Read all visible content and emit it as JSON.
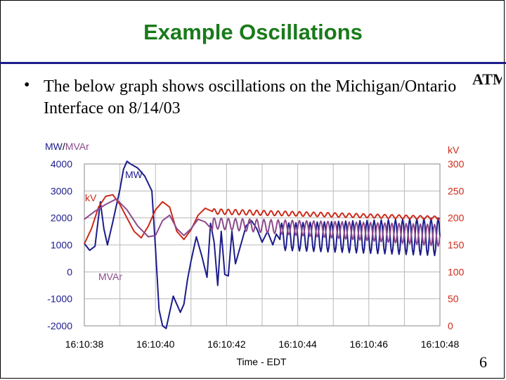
{
  "slide": {
    "title": "Example Oscillations",
    "bullet": "The below graph shows oscillations on the Michigan/Ontario Interface on 8/14/03",
    "page_number": "6",
    "logo_text": "ATM"
  },
  "chart_data": {
    "type": "line",
    "title": "",
    "xlabel": "Time - EDT",
    "ylabel_left_parts": [
      "MW",
      "/",
      "MVAr"
    ],
    "ylabel_right": "kV",
    "x_ticks": [
      "16:10:38",
      "16:10:40",
      "16:10:42",
      "16:10:44",
      "16:10:46",
      "16:10:48"
    ],
    "y_left_ticks": [
      "4000",
      "3000",
      "2000",
      "1000",
      "0",
      "-1000",
      "-2000"
    ],
    "y_right_ticks": [
      "300",
      "250",
      "200",
      "150",
      "100",
      "50",
      "0"
    ],
    "ylim_left": [
      -2000,
      4000
    ],
    "ylim_right": [
      0,
      300
    ],
    "xlim_seconds": [
      0,
      10
    ],
    "grid": true,
    "colors": {
      "MW": "#1c1c8c",
      "kV": "#cc2a1a",
      "MVAr": "#8c4a8c",
      "axis_left": "#1c1c8c",
      "axis_right": "#cc2a1a",
      "grid": "#b8b8b8"
    },
    "series": [
      {
        "name": "MW",
        "label": "MW",
        "axis": "left",
        "x": [
          0,
          0.15,
          0.3,
          0.45,
          0.55,
          0.65,
          0.8,
          1,
          1.1,
          1.2,
          1.3,
          1.5,
          1.7,
          1.9,
          2.0,
          2.1,
          2.2,
          2.3,
          2.4,
          2.5,
          2.7,
          2.8,
          2.9,
          3.0,
          3.15,
          3.3,
          3.45,
          3.55,
          3.65,
          3.75,
          3.85,
          3.95,
          4.05,
          4.15,
          4.25,
          4.4,
          4.55,
          4.7,
          4.85,
          5.0,
          5.15,
          5.3,
          5.4,
          5.5
        ],
        "y": [
          1050,
          800,
          950,
          2600,
          1600,
          1000,
          1850,
          3050,
          3800,
          4100,
          4000,
          3850,
          3550,
          3000,
          900,
          -1400,
          -2000,
          -2100,
          -1500,
          -900,
          -1500,
          -1200,
          -300,
          400,
          1300,
          600,
          -200,
          1800,
          1100,
          -500,
          1500,
          -100,
          -150,
          1500,
          300,
          1000,
          1700,
          1900,
          1600,
          1100,
          1500,
          1000,
          1400,
          1200
        ],
        "oscillation": {
          "x_start": 5.5,
          "x_end": 10,
          "center": 1300,
          "amplitude_start": 500,
          "amplitude_end": 700,
          "period": 0.2
        }
      },
      {
        "name": "kV",
        "label": "kV",
        "axis": "right",
        "x": [
          0,
          0.2,
          0.4,
          0.6,
          0.8,
          1.0,
          1.2,
          1.4,
          1.6,
          1.8,
          2.0,
          2.2,
          2.4,
          2.6,
          2.8,
          3.0,
          3.2,
          3.4,
          3.6
        ],
        "y": [
          152,
          180,
          220,
          240,
          243,
          225,
          200,
          175,
          163,
          185,
          215,
          230,
          220,
          175,
          160,
          178,
          205,
          218,
          212
        ],
        "oscillation": {
          "x_start": 3.6,
          "x_end": 10,
          "center_start": 212,
          "center_end": 200,
          "amplitude_start": 5,
          "amplitude_end": 3,
          "period": 0.2
        }
      },
      {
        "name": "MVAr",
        "label": "MVAr",
        "axis": "left",
        "x": [
          0,
          0.3,
          0.6,
          0.9,
          1.2,
          1.5,
          1.8,
          2.0,
          2.2,
          2.4,
          2.6,
          2.8,
          3.0,
          3.2,
          3.4,
          3.6
        ],
        "y": [
          1950,
          2250,
          2500,
          2700,
          2300,
          1700,
          1300,
          1350,
          1900,
          2100,
          1600,
          1350,
          1600,
          1950,
          1850,
          1550
        ],
        "oscillation": {
          "x_start": 3.6,
          "x_end": 10,
          "center_start": 1800,
          "center_end": 1350,
          "amplitude_start": 200,
          "amplitude_end": 400,
          "period": 0.2
        }
      }
    ]
  }
}
